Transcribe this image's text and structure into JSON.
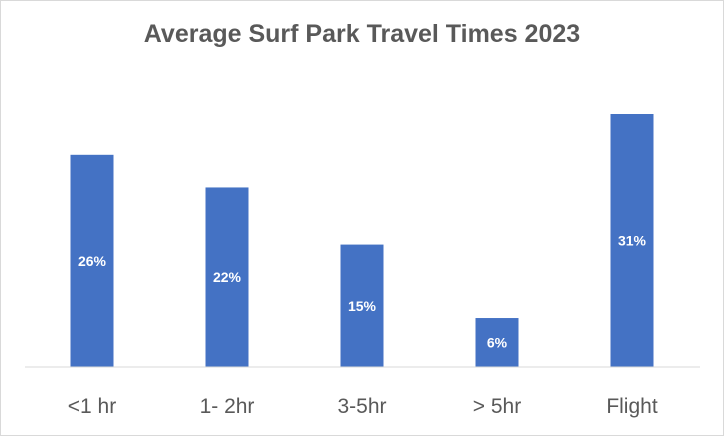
{
  "chart_data": {
    "type": "bar",
    "title": "Average Surf Park Travel Times 2023",
    "categories": [
      "<1 hr",
      "1- 2hr",
      "3-5hr",
      "> 5hr",
      "Flight"
    ],
    "values": [
      26,
      22,
      15,
      6,
      31
    ],
    "data_labels": [
      "26%",
      "22%",
      "15%",
      "6%",
      "31%"
    ],
    "xlabel": "",
    "ylabel": "",
    "ylim": [
      0,
      36
    ],
    "grid": false,
    "legend": "none",
    "bar_color": "#4472C4"
  }
}
